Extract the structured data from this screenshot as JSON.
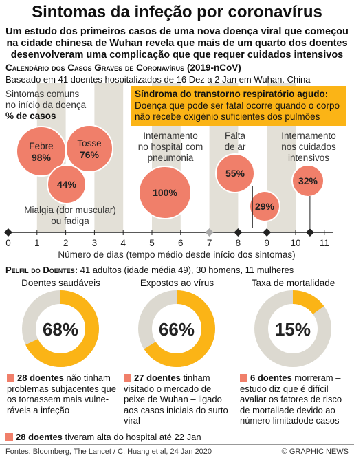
{
  "header": {
    "title": "Sintomas da infeção por coronavírus",
    "subtitle": "Um estudo dos primeiros casos de uma nova doença viral que começou na cidade chinesa de Wuhan revela que mais de um quarto dos doentes desenvolveram uma complicação que que requer cuidados intensivos"
  },
  "calendar": {
    "title": "Calendário dos Casos Graves de Coronavírus",
    "title_suffix": " (2019-nCoV)",
    "subtitle": "Baseado em 41 doentes hospitalizados de 16 Dez a 2 Jan em Wuhan, China"
  },
  "colors": {
    "accent": "#f07f6a",
    "band": "#e3e0d7",
    "gold": "#fbb416",
    "donut_bg": "#dcd9d0"
  },
  "chart_data": {
    "type": "scatter",
    "xlabel": "Número de dias (tempo médio desde início dos sintomas)",
    "x_ticks": [
      0,
      1,
      2,
      3,
      4,
      5,
      6,
      7,
      8,
      9,
      10,
      11
    ],
    "bubbles": [
      {
        "label": "Febre",
        "value": "98%"
      },
      {
        "label": "Tosse",
        "value": "76%"
      },
      {
        "label": "",
        "value": "44%"
      },
      {
        "label": "",
        "value": "100%"
      },
      {
        "label": "",
        "value": "55%"
      },
      {
        "label": "",
        "value": "29%"
      },
      {
        "label": "",
        "value": "32%"
      }
    ],
    "annotations": {
      "symptoms": [
        "Sintomas comuns",
        "no início da doença",
        "% de casos"
      ],
      "myalgia": [
        "Mialgia (dor muscular)",
        "ou fadiga"
      ],
      "hospital": [
        "Internamento",
        "no hospital com",
        "pneumonia"
      ],
      "breath": [
        "Falta",
        "de ar"
      ],
      "icu": [
        "Internamento",
        "nos cuidados",
        "intensivos"
      ],
      "ards_title": "Síndroma do transtorno respiratório agudo:",
      "ards_body": [
        "Doença que pode ser fatal ocorre quando o corpo",
        "não recebe oxigénio suficientes dos pulmões"
      ]
    }
  },
  "profile": {
    "title": "Pelfil do Doentes:",
    "subtitle": " 41 adultos (idade média 49), 30 homens, 11 mulheres",
    "columns": [
      {
        "title": "Doentes saudáveis",
        "value": "68%",
        "fraction": 0.68,
        "note_bold": "28 doentes",
        "note": " não tinham problemas subjacentes que os tornassem mais vulne-ráveis a infeção"
      },
      {
        "title": "Expostos ao vírus",
        "value": "66%",
        "fraction": 0.66,
        "note_bold": "27 doentes",
        "note": " tinham visitado o mercado de peixe de Wuhan – ligado aos casos iniciais do surto viral"
      },
      {
        "title": "Taxa de mortalidade",
        "value": "15%",
        "fraction": 0.15,
        "note_bold": "6 doentes",
        "note": " morreram – estudo diz que é difícil avaliar os fatores de risco de mortaliade devido ao número limitadode casos"
      }
    ],
    "discharged_bold": "28 doentes",
    "discharged": " tiveram alta do hospital até 22 Jan"
  },
  "footer": {
    "sources": "Fontes: Bloomberg, The Lancet / C. Huang et al, 24 Jan 2020",
    "credit": "© GRAPHIC NEWS"
  }
}
